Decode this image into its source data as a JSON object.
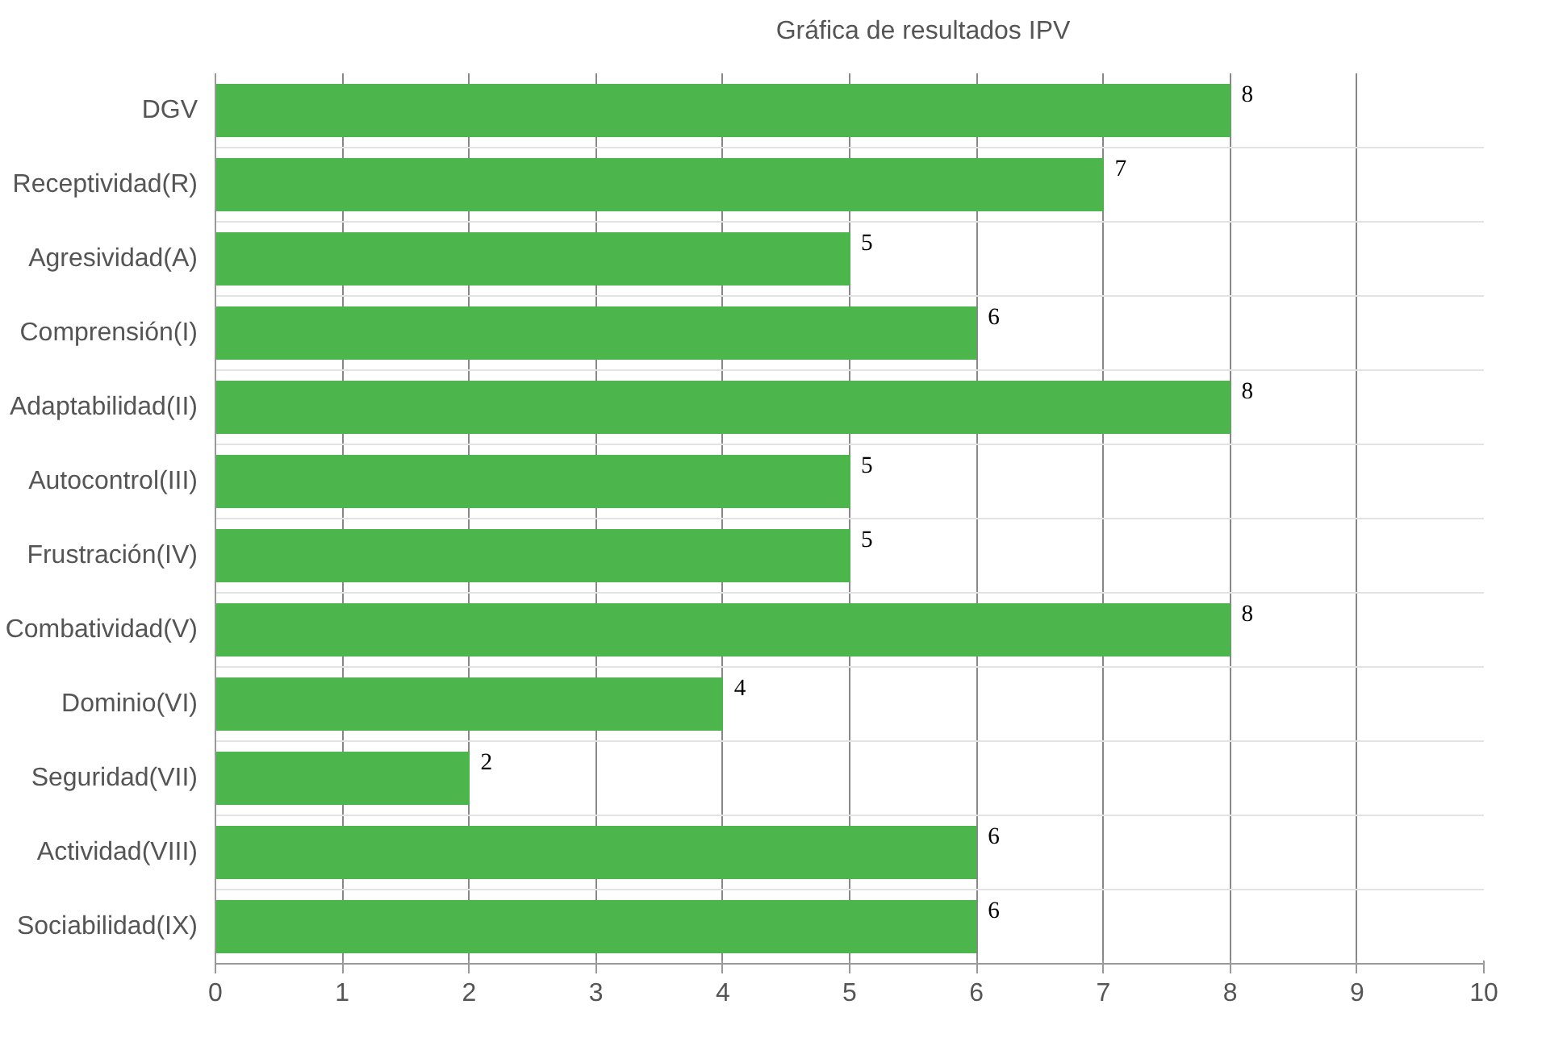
{
  "chart_data": {
    "type": "bar",
    "orientation": "horizontal",
    "categories": [
      "DGV",
      "Receptividad(R)",
      "Agresividad(A)",
      "Comprensión(I)",
      "Adaptabilidad(II)",
      "Autocontrol(III)",
      "Frustración(IV)",
      "Combatividad(V)",
      "Dominio(VI)",
      "Seguridad(VII)",
      "Actividad(VIII)",
      "Sociabilidad(IX)"
    ],
    "series": [
      {
        "name": "Gráfica de resultados IPV",
        "color": "#4cb54c",
        "values": [
          8,
          7,
          5,
          6,
          8,
          5,
          5,
          8,
          4,
          2,
          6,
          6
        ]
      }
    ],
    "xlim": [
      0,
      10
    ],
    "xticks": [
      0,
      1,
      2,
      3,
      4,
      5,
      6,
      7,
      8,
      9,
      10
    ],
    "grid": true,
    "legend": "top",
    "data_labels": true
  }
}
